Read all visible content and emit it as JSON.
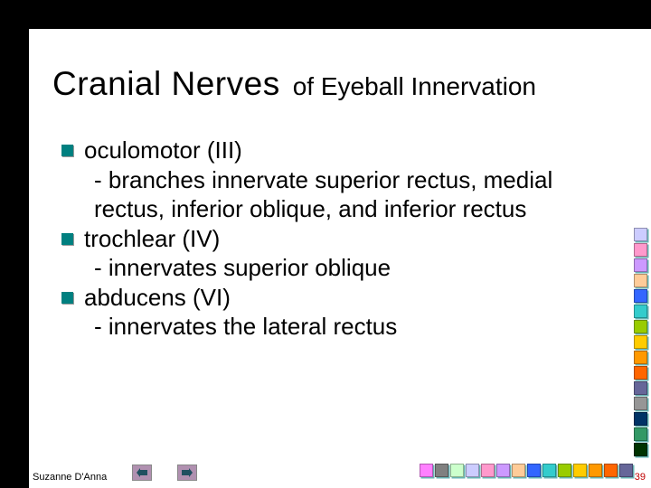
{
  "title": {
    "main": "Cranial Nerves",
    "sub": "of Eyeball Innervation"
  },
  "bullets": [
    {
      "head": "oculomotor (III)",
      "sub": "- branches innervate superior rectus, medial rectus, inferior oblique, and inferior rectus"
    },
    {
      "head": "trochlear (IV)",
      "sub": "- innervates superior oblique"
    },
    {
      "head": "abducens (VI)",
      "sub": "- innervates the lateral rectus"
    }
  ],
  "footer": {
    "author": "Suzanne D'Anna",
    "slide_number": "39"
  },
  "palette": {
    "strip_h": [
      "#ff80ff",
      "#808080",
      "#ccffcc",
      "#ccccff",
      "#ff99cc",
      "#cc99ff",
      "#ffcc99",
      "#3366ff",
      "#33cccc",
      "#99cc00",
      "#ffcc00",
      "#ff9900",
      "#ff6600",
      "#666699"
    ],
    "strip_v": [
      "#ccccff",
      "#ff99cc",
      "#cc99ff",
      "#ffcc99",
      "#3366ff",
      "#33cccc",
      "#99cc00",
      "#ffcc00",
      "#ff9900",
      "#ff6600",
      "#666699",
      "#969696",
      "#003366",
      "#339966",
      "#003300"
    ]
  }
}
